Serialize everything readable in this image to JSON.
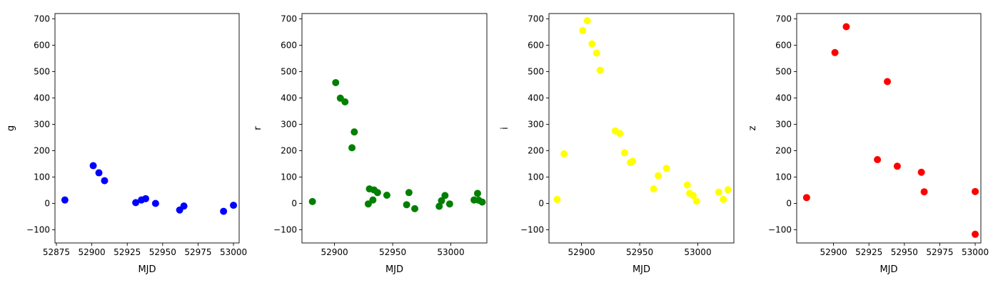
{
  "chart_data": [
    {
      "type": "scatter",
      "xlabel": "MJD",
      "ylabel": "g",
      "color": "#0000ff",
      "xlim": [
        52874,
        53004
      ],
      "ylim": [
        -150,
        720
      ],
      "xticks": [
        52875,
        52900,
        52925,
        52950,
        52975,
        53000
      ],
      "yticks": [
        -100,
        0,
        100,
        200,
        300,
        400,
        500,
        600,
        700
      ],
      "x": [
        52881,
        52901,
        52905,
        52909,
        52931,
        52935,
        52938,
        52945,
        52962,
        52965,
        52993,
        53000
      ],
      "y": [
        13,
        143,
        116,
        86,
        3,
        13,
        18,
        0,
        -25,
        -10,
        -30,
        -7
      ]
    },
    {
      "type": "scatter",
      "xlabel": "MJD",
      "ylabel": "r",
      "color": "#008000",
      "xlim": [
        52872,
        53031
      ],
      "ylim": [
        -150,
        720
      ],
      "xticks": [
        52900,
        52950,
        53000
      ],
      "yticks": [
        -100,
        0,
        100,
        200,
        300,
        400,
        500,
        600,
        700
      ],
      "x": [
        52881,
        52901,
        52905,
        52909,
        52915,
        52917,
        52929,
        52930,
        52933,
        52934,
        52937,
        52945,
        52962,
        52964,
        52969,
        52990,
        52992,
        52995,
        52999,
        53020,
        53023,
        53024,
        53027
      ],
      "y": [
        7,
        458,
        399,
        385,
        211,
        271,
        -2,
        55,
        13,
        51,
        41,
        31,
        -5,
        41,
        -20,
        -11,
        10,
        30,
        -2,
        13,
        38,
        12,
        5
      ]
    },
    {
      "type": "scatter",
      "xlabel": "MJD",
      "ylabel": "i",
      "color": "#ffff00",
      "xlim": [
        52872,
        53031
      ],
      "ylim": [
        -150,
        720
      ],
      "xticks": [
        52900,
        52950,
        53000
      ],
      "yticks": [
        -100,
        0,
        100,
        200,
        300,
        400,
        500,
        600,
        700
      ],
      "x": [
        52879,
        52885,
        52901,
        52905,
        52909,
        52913,
        52916,
        52929,
        52933,
        52937,
        52942,
        52944,
        52962,
        52966,
        52973,
        52991,
        52993,
        52996,
        52999,
        53018,
        53022,
        53026
      ],
      "y": [
        15,
        188,
        655,
        693,
        605,
        570,
        505,
        275,
        265,
        192,
        155,
        160,
        55,
        105,
        133,
        70,
        38,
        30,
        8,
        43,
        15,
        52
      ]
    },
    {
      "type": "scatter",
      "xlabel": "MJD",
      "ylabel": "z",
      "color": "#ff0000",
      "xlim": [
        52874,
        53004
      ],
      "ylim": [
        -150,
        720
      ],
      "xticks": [
        52900,
        52925,
        52950,
        52975,
        53000
      ],
      "yticks": [
        -100,
        0,
        100,
        200,
        300,
        400,
        500,
        600,
        700
      ],
      "x": [
        52881,
        52901,
        52909,
        52931,
        52938,
        52945,
        52962,
        52964,
        53000,
        53000
      ],
      "y": [
        22,
        572,
        670,
        166,
        462,
        141,
        118,
        44,
        45,
        -117
      ]
    }
  ]
}
